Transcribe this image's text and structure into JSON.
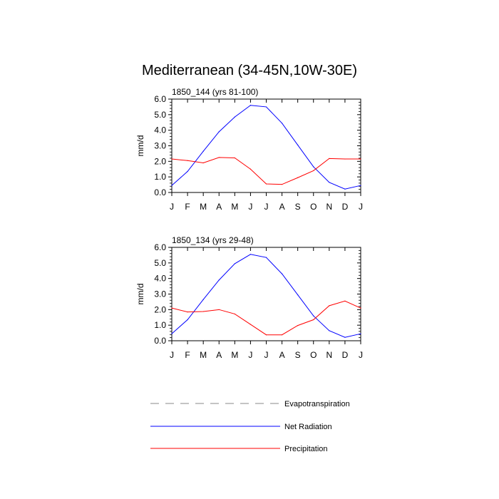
{
  "figure": {
    "title": "Mediterranean (34-45N,10W-30E)"
  },
  "legend": {
    "items": [
      {
        "name": "Evapotranspiration",
        "color": "#888888",
        "dash": true
      },
      {
        "name": "Net Radiation",
        "color": "#0000ff",
        "dash": false
      },
      {
        "name": "Precipitation",
        "color": "#ff0000",
        "dash": false
      }
    ]
  },
  "chart_data": [
    {
      "type": "line",
      "title": "1850_144 (yrs 81-100)",
      "ylabel": "mm/d",
      "xlabel": "",
      "ylim": [
        0,
        6
      ],
      "yticks": [
        "0.0",
        "1.0",
        "2.0",
        "3.0",
        "4.0",
        "5.0",
        "6.0"
      ],
      "categories": [
        "J",
        "F",
        "M",
        "A",
        "M",
        "J",
        "J",
        "A",
        "S",
        "O",
        "N",
        "D",
        "J"
      ],
      "series": [
        {
          "name": "Net Radiation",
          "color": "#0000ff",
          "values": [
            0.45,
            1.35,
            2.65,
            3.9,
            4.85,
            5.6,
            5.5,
            4.45,
            3.05,
            1.65,
            0.65,
            0.22,
            0.45
          ]
        },
        {
          "name": "Precipitation",
          "color": "#ff0000",
          "values": [
            2.15,
            2.05,
            1.9,
            2.25,
            2.22,
            1.5,
            0.55,
            0.52,
            0.95,
            1.4,
            2.18,
            2.15,
            2.15
          ]
        }
      ]
    },
    {
      "type": "line",
      "title": "1850_134 (yrs 29-48)",
      "ylabel": "mm/d",
      "xlabel": "",
      "ylim": [
        0,
        6
      ],
      "yticks": [
        "0.0",
        "1.0",
        "2.0",
        "3.0",
        "4.0",
        "5.0",
        "6.0"
      ],
      "categories": [
        "J",
        "F",
        "M",
        "A",
        "M",
        "J",
        "J",
        "A",
        "S",
        "O",
        "N",
        "D",
        "J"
      ],
      "series": [
        {
          "name": "Net Radiation",
          "color": "#0000ff",
          "values": [
            0.45,
            1.35,
            2.65,
            3.9,
            4.95,
            5.55,
            5.35,
            4.3,
            2.95,
            1.6,
            0.65,
            0.22,
            0.45
          ]
        },
        {
          "name": "Precipitation",
          "color": "#ff0000",
          "values": [
            2.1,
            1.85,
            1.88,
            2.0,
            1.72,
            1.05,
            0.38,
            0.38,
            0.98,
            1.35,
            2.25,
            2.55,
            2.1
          ]
        }
      ]
    }
  ]
}
